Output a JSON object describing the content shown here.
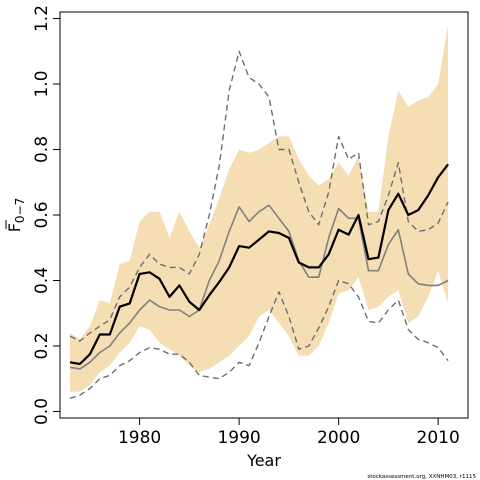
{
  "chart_data": {
    "type": "area",
    "xlabel": "Year",
    "ylabel": "F̅0−7",
    "ylabel_main": "F",
    "ylabel_sub": "0−7",
    "xlim": [
      1972,
      2013
    ],
    "ylim": [
      -0.02,
      1.22
    ],
    "x_ticks": [
      1980,
      1990,
      2000,
      2010
    ],
    "y_ticks": [
      0.0,
      0.2,
      0.4,
      0.6,
      0.8,
      1.0,
      1.2
    ],
    "y_tick_labels": [
      "0.0",
      "0.2",
      "0.4",
      "0.6",
      "0.8",
      "1.0",
      "1.2"
    ],
    "grid": false,
    "credit": "stockassessment.org, XXNHM03, r1115",
    "colors": {
      "band": "#f5deb3",
      "estimate": "#000000",
      "secondary": "#808080",
      "bounds": "#6e6e6e"
    },
    "years": [
      1973,
      1974,
      1975,
      1976,
      1977,
      1978,
      1979,
      1980,
      1981,
      1982,
      1983,
      1984,
      1985,
      1986,
      1987,
      1988,
      1989,
      1990,
      1991,
      1992,
      1993,
      1994,
      1995,
      1996,
      1997,
      1998,
      1999,
      2000,
      2001,
      2002,
      2003,
      2004,
      2005,
      2006,
      2007,
      2008,
      2009,
      2010,
      2011
    ],
    "band_upper": [
      0.24,
      0.22,
      0.26,
      0.34,
      0.33,
      0.45,
      0.46,
      0.58,
      0.61,
      0.61,
      0.53,
      0.61,
      0.55,
      0.5,
      0.57,
      0.65,
      0.74,
      0.8,
      0.79,
      0.8,
      0.82,
      0.84,
      0.84,
      0.77,
      0.72,
      0.69,
      0.71,
      0.76,
      0.72,
      0.78,
      0.61,
      0.61,
      0.84,
      0.98,
      0.93,
      0.95,
      0.96,
      1.0,
      1.18
    ],
    "band_lower": [
      0.06,
      0.06,
      0.08,
      0.12,
      0.14,
      0.18,
      0.21,
      0.26,
      0.25,
      0.21,
      0.19,
      0.17,
      0.14,
      0.12,
      0.13,
      0.15,
      0.17,
      0.2,
      0.23,
      0.29,
      0.31,
      0.27,
      0.23,
      0.17,
      0.17,
      0.2,
      0.27,
      0.36,
      0.37,
      0.41,
      0.31,
      0.32,
      0.35,
      0.37,
      0.27,
      0.29,
      0.35,
      0.43,
      0.33
    ],
    "series": [
      {
        "style": "solid-thick",
        "values": [
          0.15,
          0.145,
          0.175,
          0.235,
          0.235,
          0.32,
          0.33,
          0.42,
          0.425,
          0.405,
          0.35,
          0.385,
          0.335,
          0.31,
          0.355,
          0.395,
          0.44,
          0.505,
          0.5,
          0.525,
          0.55,
          0.545,
          0.53,
          0.455,
          0.44,
          0.44,
          0.48,
          0.555,
          0.54,
          0.6,
          0.465,
          0.47,
          0.615,
          0.665,
          0.6,
          0.615,
          0.66,
          0.715,
          0.755
        ]
      },
      {
        "style": "solid-gray",
        "values": [
          0.135,
          0.13,
          0.15,
          0.18,
          0.2,
          0.24,
          0.27,
          0.31,
          0.34,
          0.32,
          0.31,
          0.31,
          0.29,
          0.31,
          0.4,
          0.46,
          0.55,
          0.625,
          0.58,
          0.61,
          0.63,
          0.59,
          0.55,
          0.46,
          0.41,
          0.41,
          0.53,
          0.62,
          0.59,
          0.59,
          0.43,
          0.43,
          0.51,
          0.555,
          0.42,
          0.39,
          0.385,
          0.385,
          0.4
        ]
      },
      {
        "style": "dashed-upper",
        "values": [
          0.23,
          0.215,
          0.24,
          0.26,
          0.28,
          0.35,
          0.38,
          0.44,
          0.48,
          0.45,
          0.44,
          0.44,
          0.42,
          0.48,
          0.6,
          0.75,
          0.98,
          1.1,
          1.02,
          1.0,
          0.96,
          0.8,
          0.8,
          0.7,
          0.61,
          0.57,
          0.67,
          0.84,
          0.77,
          0.79,
          0.57,
          0.58,
          0.66,
          0.76,
          0.58,
          0.55,
          0.555,
          0.575,
          0.64
        ]
      },
      {
        "style": "dashed-lower",
        "values": [
          0.04,
          0.05,
          0.07,
          0.1,
          0.11,
          0.14,
          0.155,
          0.18,
          0.195,
          0.19,
          0.175,
          0.175,
          0.15,
          0.11,
          0.105,
          0.1,
          0.12,
          0.15,
          0.14,
          0.21,
          0.29,
          0.365,
          0.29,
          0.19,
          0.2,
          0.255,
          0.32,
          0.4,
          0.39,
          0.35,
          0.275,
          0.27,
          0.31,
          0.34,
          0.25,
          0.22,
          0.21,
          0.195,
          0.155
        ]
      }
    ]
  }
}
